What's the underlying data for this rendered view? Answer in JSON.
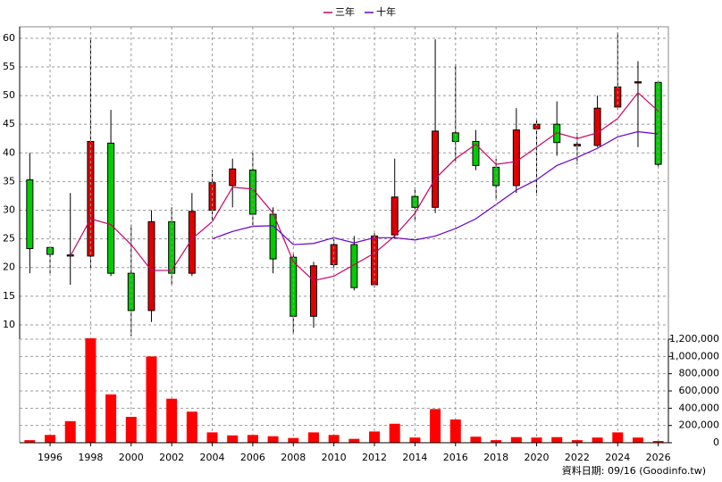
{
  "chart_data": [
    {
      "type": "candlestick",
      "x": [
        1995,
        1996,
        1997,
        1998,
        1999,
        2000,
        2001,
        2002,
        2003,
        2004,
        2005,
        2006,
        2007,
        2008,
        2009,
        2010,
        2011,
        2012,
        2013,
        2014,
        2015,
        2016,
        2017,
        2018,
        2019,
        2020,
        2021,
        2022,
        2023,
        2024,
        2025,
        2026
      ],
      "open": [
        35.3,
        23.5,
        22,
        22,
        41.7,
        19,
        12.5,
        28,
        19,
        30,
        34.3,
        37,
        29.3,
        21.8,
        11.5,
        20.5,
        24,
        17,
        25.7,
        32.4,
        30.5,
        43.5,
        42,
        37.5,
        34.3,
        44.2,
        45,
        41.2,
        41.3,
        48,
        52.2,
        52.3
      ],
      "high": [
        40,
        23.5,
        33,
        60,
        47.5,
        27.5,
        30,
        30.5,
        33,
        37,
        39,
        40,
        30.5,
        22.5,
        21,
        25,
        25.5,
        26,
        39,
        34,
        59.8,
        55.5,
        44,
        39,
        47.8,
        46,
        49,
        43.5,
        50,
        61,
        56,
        52.5
      ],
      "low": [
        19,
        19,
        17,
        20,
        18.5,
        8,
        10.5,
        17,
        18.5,
        28,
        30.5,
        27,
        19,
        8.5,
        9.5,
        20,
        16,
        16.5,
        25,
        28,
        29.5,
        38.5,
        37,
        32,
        33,
        32.5,
        39.5,
        38,
        41,
        47.5,
        41,
        37.5
      ],
      "close": [
        23.3,
        22.3,
        22.2,
        42,
        19,
        12.5,
        28,
        19,
        29.8,
        34.8,
        37.2,
        29.3,
        21.5,
        11.5,
        20.3,
        24,
        16.5,
        25.5,
        32.3,
        30.5,
        43.8,
        42,
        37.8,
        34.3,
        44,
        45,
        41.8,
        41.5,
        47.8,
        51.5,
        52.4,
        38
      ],
      "up_color": "#e00000",
      "down_color": "#00cc00",
      "series": [
        {
          "name": "三年",
          "color": "#cc0066",
          "values": [
            null,
            null,
            22,
            28.5,
            27.5,
            24,
            19.5,
            19.5,
            25,
            28,
            34,
            33.7,
            29.5,
            21,
            17.7,
            18.5,
            20.5,
            22.5,
            25.5,
            29.5,
            35.5,
            39,
            41.5,
            38,
            38.5,
            41,
            43.5,
            42.5,
            43.5,
            46,
            50.5,
            47.3
          ]
        },
        {
          "name": "十年",
          "color": "#6600cc",
          "values": [
            null,
            null,
            null,
            null,
            null,
            null,
            null,
            null,
            null,
            25,
            26.3,
            27.2,
            27.3,
            24,
            24.2,
            25.2,
            24.3,
            25.2,
            25.2,
            24.8,
            25.5,
            26.8,
            28.5,
            31,
            33.5,
            35.3,
            37.8,
            39.2,
            40.8,
            42.8,
            43.7,
            43.3
          ]
        }
      ],
      "xlim": [
        1994.5,
        2026.5
      ],
      "ylim": [
        7.5,
        62
      ],
      "yticks": [
        10,
        15,
        20,
        25,
        30,
        35,
        40,
        45,
        50,
        55,
        60
      ],
      "grid": true
    },
    {
      "type": "bar",
      "x": [
        1995,
        1996,
        1997,
        1998,
        1999,
        2000,
        2001,
        2002,
        2003,
        2004,
        2005,
        2006,
        2007,
        2008,
        2009,
        2010,
        2011,
        2012,
        2013,
        2014,
        2015,
        2016,
        2017,
        2018,
        2019,
        2020,
        2021,
        2022,
        2023,
        2024,
        2025,
        2026
      ],
      "values": [
        30000,
        90000,
        250000,
        1210000,
        560000,
        300000,
        1000000,
        510000,
        360000,
        120000,
        85000,
        90000,
        75000,
        55000,
        120000,
        90000,
        45000,
        130000,
        220000,
        60000,
        390000,
        270000,
        70000,
        30000,
        65000,
        60000,
        65000,
        30000,
        60000,
        120000,
        60000,
        20000
      ],
      "color": "#ff0000",
      "xlim": [
        1994.5,
        2026.5
      ],
      "ylim": [
        0,
        1200000
      ],
      "yticks": [
        0,
        {
          "value": 200000,
          "label": "200,000"
        },
        {
          "value": 400000,
          "label": "400,000"
        },
        {
          "value": 600000,
          "label": "600,000"
        },
        {
          "value": 800000,
          "label": "800,000"
        },
        {
          "value": 1000000,
          "label": "1,000,000"
        },
        {
          "value": 1200000,
          "label": "1,200,000"
        }
      ],
      "xticks": [
        1996,
        1998,
        2000,
        2002,
        2004,
        2006,
        2008,
        2010,
        2012,
        2014,
        2016,
        2018,
        2020,
        2022,
        2024,
        2026
      ],
      "grid": true,
      "source": "資料日期: 09/16 (Goodinfo.tw)"
    }
  ]
}
